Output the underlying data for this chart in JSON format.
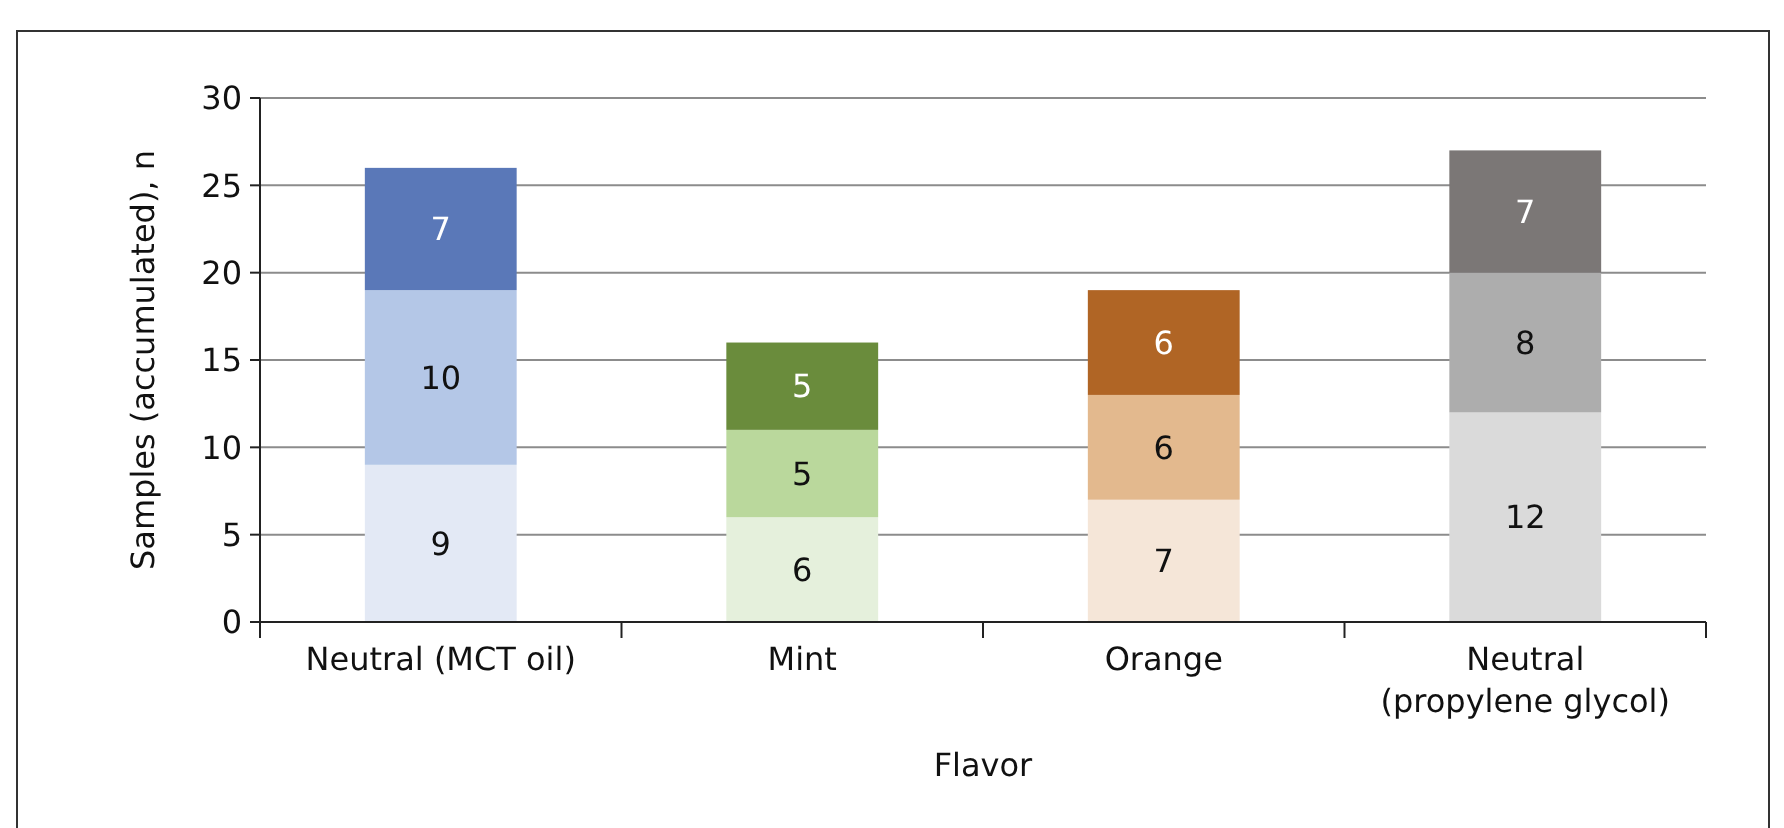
{
  "chart_data": {
    "type": "bar",
    "stacked": true,
    "xlabel": "Flavor",
    "ylabel": "Samples (accumulated), n",
    "categories": [
      "Neutral (MCT oil)",
      "Mint",
      "Orange",
      "Neutral (propylene glycol)"
    ],
    "series": [
      {
        "colors": [
          "#e3e9f5",
          "#e5f0dc",
          "#f5e6d8",
          "#dadada"
        ],
        "values": [
          9,
          6,
          7,
          12
        ]
      },
      {
        "colors": [
          "#b4c7e7",
          "#bad89c",
          "#e3b98e",
          "#adadad"
        ],
        "values": [
          10,
          5,
          6,
          8
        ]
      },
      {
        "colors": [
          "#5a78b8",
          "#6a8c3c",
          "#b06525",
          "#7b7776"
        ],
        "values": [
          7,
          5,
          6,
          7
        ]
      }
    ],
    "ylim": [
      0,
      30
    ],
    "yticks": [
      0,
      5,
      10,
      15,
      20,
      25,
      30
    ],
    "grid": "y",
    "data_labels": true
  }
}
